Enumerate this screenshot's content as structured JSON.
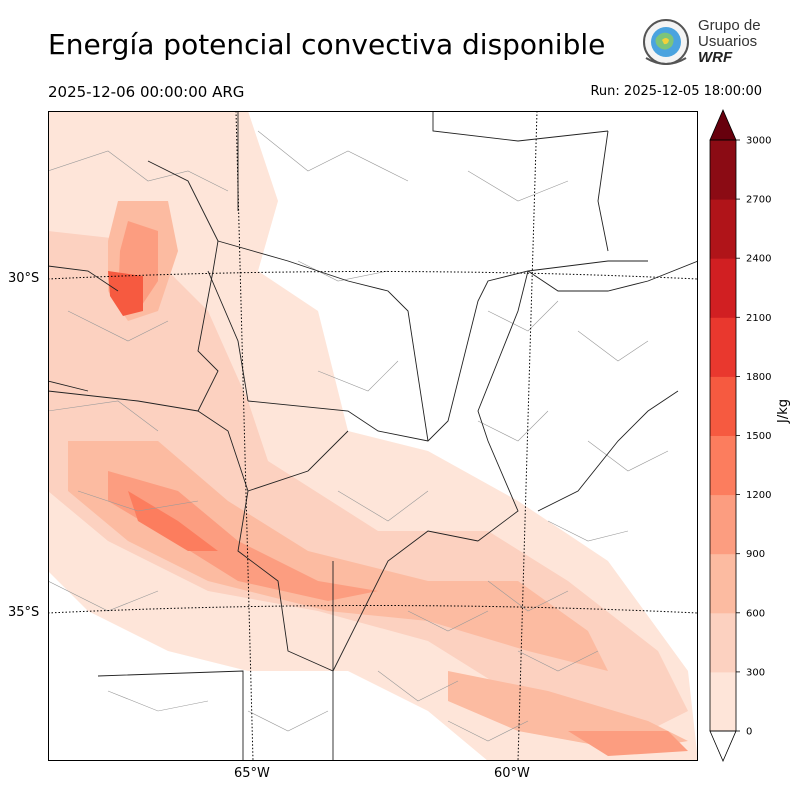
{
  "header": {
    "title": "Energía potencial convectiva disponible",
    "valid_time": "2025-12-06 00:00:00 ARG",
    "run_time": "Run: 2025-12-05 18:00:00"
  },
  "logo": {
    "line1": "Grupo de",
    "line2": "Usuarios",
    "line3": "WRF"
  },
  "map": {
    "lat_labels": [
      "30°S",
      "35°S"
    ],
    "lon_labels": [
      "65°W",
      "60°W"
    ]
  },
  "colorbar": {
    "unit": "J/kg",
    "ticks": [
      "0",
      "300",
      "600",
      "900",
      "1200",
      "1500",
      "1800",
      "2100",
      "2400",
      "2700",
      "3000"
    ],
    "colors": [
      "#fee5d9",
      "#fcd1c0",
      "#fcbba1",
      "#fc9d80",
      "#fc7d5e",
      "#f65a40",
      "#e9382e",
      "#d11f22",
      "#b01419",
      "#8b0b14"
    ],
    "over_color": "#67000d",
    "under_color": "#ffffff"
  }
}
